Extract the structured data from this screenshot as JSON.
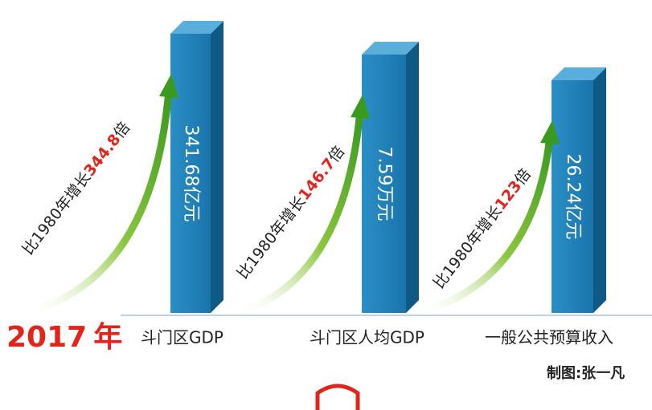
{
  "header": {
    "year": "2017",
    "year_unit": "年"
  },
  "items": [
    {
      "label": "斗门区GDP",
      "value": "341.68亿元",
      "growth_prefix": "比1980年增长",
      "multiple": "344.8",
      "suffix": "倍"
    },
    {
      "label": "斗门区人均GDP",
      "value": "7.59万元",
      "growth_prefix": "比1980年增长",
      "multiple": "146.7",
      "suffix": "倍"
    },
    {
      "label": "一般公共预算收入",
      "value": "26.24亿元",
      "growth_prefix": "比1980年增长",
      "multiple": "123",
      "suffix": "倍"
    }
  ],
  "footer": {
    "credit": "制图:张一凡"
  }
}
